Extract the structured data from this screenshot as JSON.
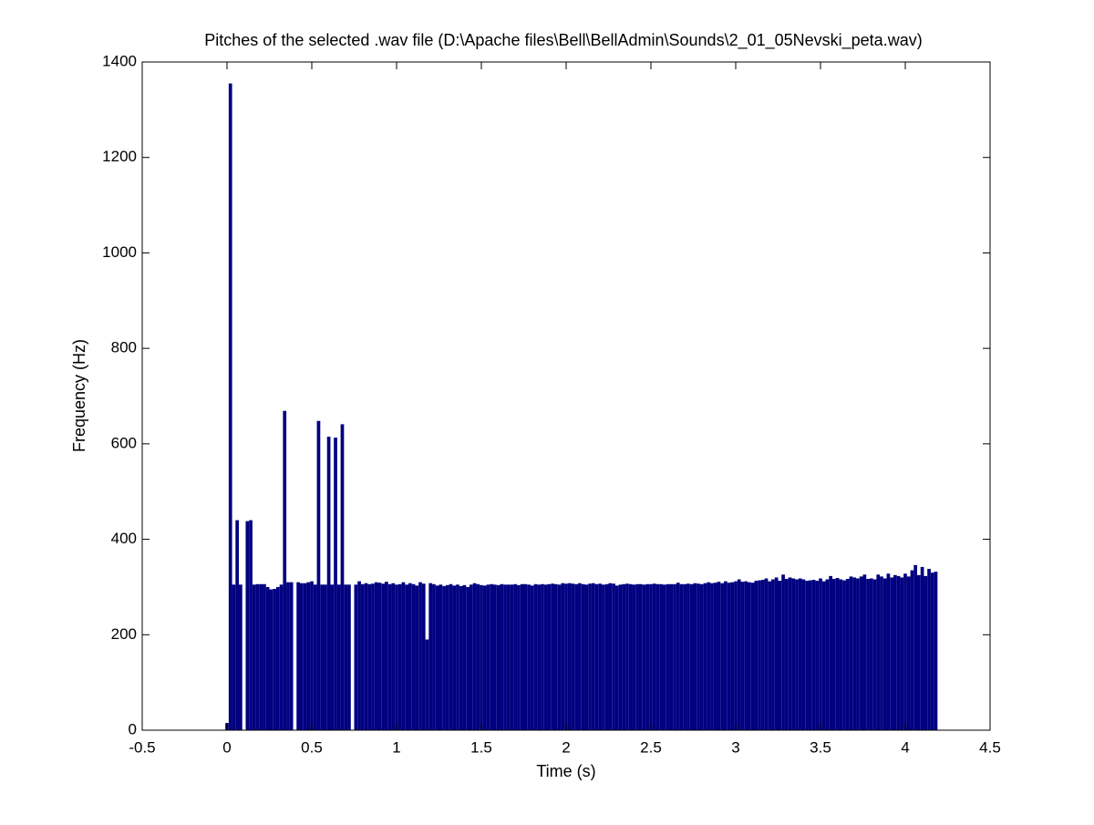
{
  "chart_data": {
    "type": "bar",
    "title": "Pitches of the selected .wav file (D:\\Apache files\\Bell\\BellAdmin\\Sounds\\2_01_05Nevski_peta.wav)",
    "x_label": "Time (s)",
    "y_label": "Frequency (Hz)",
    "color": "#000080",
    "xlim": [
      -0.5,
      4.5
    ],
    "xticks": [
      -0.5,
      0,
      0.5,
      1,
      1.5,
      2,
      2.5,
      3,
      3.5,
      4,
      4.5
    ],
    "ylim": [
      0,
      1400
    ],
    "yticks": [
      0,
      200,
      400,
      600,
      800,
      1000,
      1200,
      1400
    ],
    "x": [
      0,
      0.02,
      0.04,
      0.06,
      0.08,
      0.1,
      0.12,
      0.14,
      0.16,
      0.18,
      0.2,
      0.22,
      0.24,
      0.26,
      0.28,
      0.3,
      0.32,
      0.34,
      0.36,
      0.38,
      0.4,
      0.42,
      0.44,
      0.46,
      0.48,
      0.5,
      0.52,
      0.54,
      0.56,
      0.58,
      0.6,
      0.62,
      0.64,
      0.66,
      0.68,
      0.7,
      0.72,
      0.74,
      0.76,
      0.78,
      0.8,
      0.82,
      0.84,
      0.86,
      0.88,
      0.9,
      0.92,
      0.94,
      0.96,
      0.98,
      1,
      1.02,
      1.04,
      1.06,
      1.08,
      1.1,
      1.12,
      1.14,
      1.16,
      1.18,
      1.2,
      1.22,
      1.24,
      1.26,
      1.28,
      1.3,
      1.32,
      1.34,
      1.36,
      1.38,
      1.4,
      1.42,
      1.44,
      1.46,
      1.48,
      1.5,
      1.52,
      1.54,
      1.56,
      1.58,
      1.6,
      1.62,
      1.64,
      1.66,
      1.68,
      1.7,
      1.72,
      1.74,
      1.76,
      1.78,
      1.8,
      1.82,
      1.84,
      1.86,
      1.88,
      1.9,
      1.92,
      1.94,
      1.96,
      1.98,
      2,
      2.02,
      2.04,
      2.06,
      2.08,
      2.1,
      2.12,
      2.14,
      2.16,
      2.18,
      2.2,
      2.22,
      2.24,
      2.26,
      2.28,
      2.3,
      2.32,
      2.34,
      2.36,
      2.38,
      2.4,
      2.42,
      2.44,
      2.46,
      2.48,
      2.5,
      2.52,
      2.54,
      2.56,
      2.58,
      2.6,
      2.62,
      2.64,
      2.66,
      2.68,
      2.7,
      2.72,
      2.74,
      2.76,
      2.78,
      2.8,
      2.82,
      2.84,
      2.86,
      2.88,
      2.9,
      2.92,
      2.94,
      2.96,
      2.98,
      3,
      3.02,
      3.04,
      3.06,
      3.08,
      3.1,
      3.12,
      3.14,
      3.16,
      3.18,
      3.2,
      3.22,
      3.24,
      3.26,
      3.28,
      3.3,
      3.32,
      3.34,
      3.36,
      3.38,
      3.4,
      3.42,
      3.44,
      3.46,
      3.48,
      3.5,
      3.52,
      3.54,
      3.56,
      3.58,
      3.6,
      3.62,
      3.64,
      3.66,
      3.68,
      3.7,
      3.72,
      3.74,
      3.76,
      3.78,
      3.8,
      3.82,
      3.84,
      3.86,
      3.88,
      3.9,
      3.92,
      3.94,
      3.96,
      3.98,
      4,
      4.02,
      4.04,
      4.06,
      4.08,
      4.1,
      4.12,
      4.14,
      4.16,
      4.18
    ],
    "values": [
      15,
      1355,
      305,
      440,
      305,
      0,
      438,
      440,
      305,
      306,
      306,
      306,
      300,
      295,
      296,
      300,
      305,
      669,
      310,
      310,
      0,
      310,
      308,
      308,
      310,
      312,
      305,
      648,
      305,
      305,
      615,
      305,
      613,
      305,
      641,
      305,
      305,
      0,
      305,
      312,
      306,
      308,
      306,
      307,
      310,
      309,
      307,
      311,
      306,
      308,
      305,
      306,
      310,
      305,
      308,
      306,
      303,
      310,
      307,
      190,
      308,
      306,
      303,
      305,
      302,
      304,
      306,
      303,
      305,
      302,
      304,
      300,
      305,
      308,
      306,
      304,
      303,
      305,
      306,
      305,
      304,
      306,
      305,
      305,
      305,
      306,
      304,
      306,
      306,
      305,
      303,
      306,
      305,
      306,
      305,
      306,
      307,
      306,
      305,
      308,
      307,
      308,
      307,
      306,
      308,
      306,
      305,
      307,
      308,
      306,
      307,
      305,
      306,
      308,
      307,
      303,
      305,
      306,
      307,
      306,
      305,
      306,
      306,
      305,
      306,
      306,
      307,
      306,
      306,
      305,
      306,
      306,
      306,
      309,
      306,
      306,
      307,
      306,
      308,
      307,
      306,
      308,
      310,
      308,
      309,
      311,
      308,
      312,
      309,
      310,
      312,
      316,
      311,
      312,
      310,
      309,
      313,
      314,
      315,
      318,
      312,
      316,
      320,
      313,
      326,
      317,
      320,
      318,
      316,
      318,
      316,
      313,
      314,
      315,
      313,
      318,
      312,
      316,
      323,
      317,
      319,
      316,
      314,
      317,
      322,
      320,
      318,
      322,
      326,
      317,
      318,
      316,
      326,
      322,
      318,
      328,
      320,
      325,
      323,
      320,
      328,
      322,
      335,
      346,
      325,
      342,
      323,
      338,
      330,
      332
    ]
  }
}
